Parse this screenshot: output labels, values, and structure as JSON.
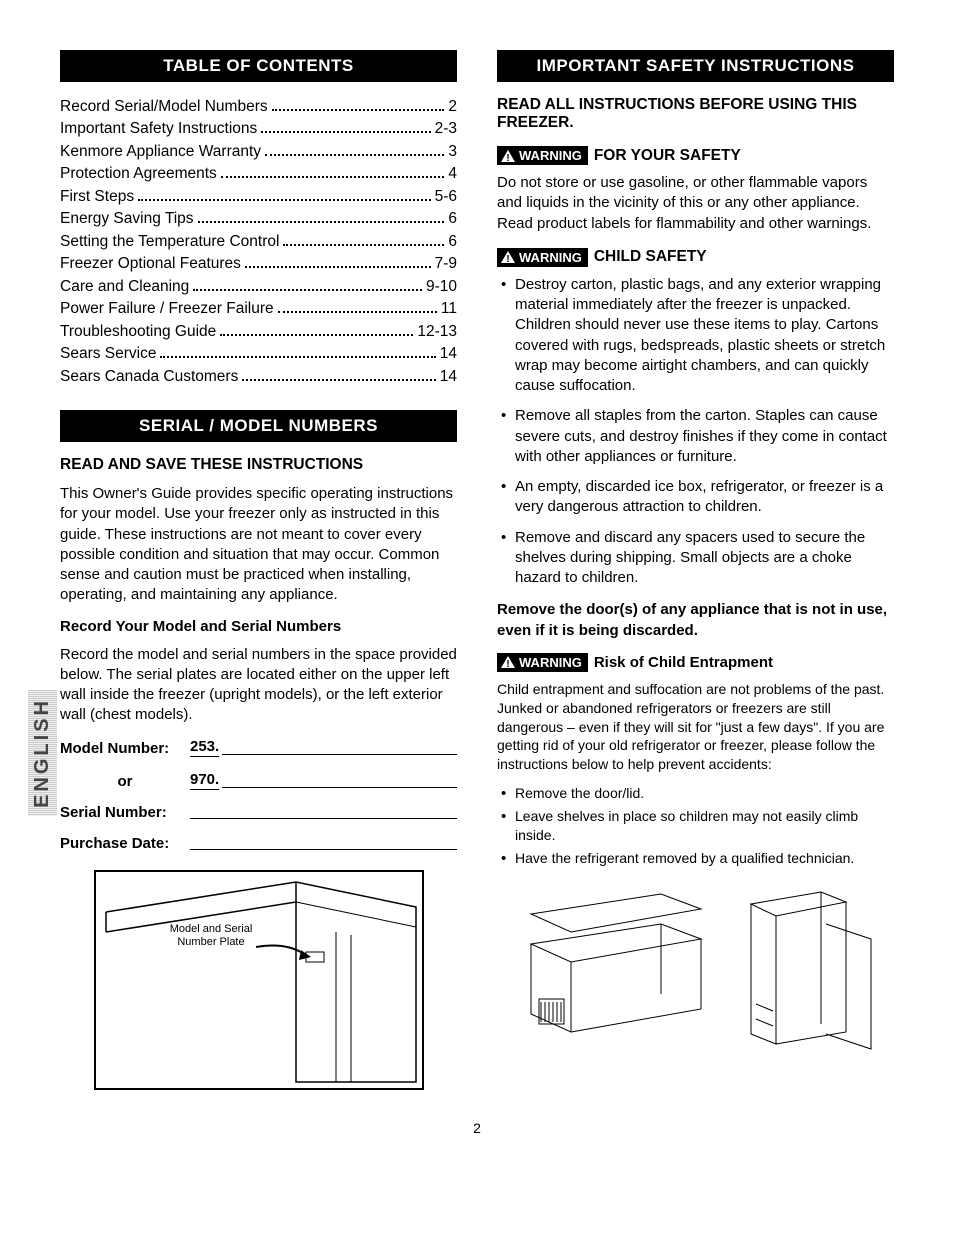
{
  "colors": {
    "header_bg": "#000000",
    "header_fg": "#ffffff",
    "text": "#000000",
    "page_bg": "#ffffff"
  },
  "typography": {
    "body_fontsize_pt": 11,
    "header_fontsize_pt": 13,
    "font_family": "Arial"
  },
  "page_number": "2",
  "english_tab": "ENGLISH",
  "left": {
    "toc_header": "TABLE OF CONTENTS",
    "toc": [
      {
        "label": "Record Serial/Model Numbers",
        "page": "2"
      },
      {
        "label": "Important Safety Instructions",
        "page": "2-3"
      },
      {
        "label": "Kenmore Appliance Warranty",
        "page": "3"
      },
      {
        "label": "Protection Agreements",
        "page": "4"
      },
      {
        "label": "First Steps",
        "page": "5-6"
      },
      {
        "label": "Energy Saving Tips",
        "page": "6"
      },
      {
        "label": "Setting the Temperature Control",
        "page": "6"
      },
      {
        "label": "Freezer Optional Features",
        "page": "7-9"
      },
      {
        "label": "Care and Cleaning",
        "page": "9-10"
      },
      {
        "label": "Power Failure / Freezer Failure",
        "page": "11"
      },
      {
        "label": "Troubleshooting Guide",
        "page": "12-13"
      },
      {
        "label": "Sears Service",
        "page": "14"
      },
      {
        "label": "Sears Canada Customers",
        "page": "14"
      }
    ],
    "serial_header": "SERIAL / MODEL NUMBERS",
    "read_save": "READ AND SAVE THESE INSTRUCTIONS",
    "owners_guide_para": "This Owner's Guide provides specific operating instructions for your model. Use your freezer only as instructed in this guide. These instructions are not meant to cover every possible condition and situation that may occur. Common sense and caution must be practiced when installing, operating, and maintaining any appliance.",
    "record_heading": "Record Your Model and Serial Numbers",
    "record_para": "Record the model and serial numbers in the space provided below. The serial plates are located either on the upper left wall inside the freezer (upright models), or the left exterior wall (chest models).",
    "fields": {
      "model_label": "Model Number:",
      "model_prefix": "253.",
      "or_label": "or",
      "or_prefix": "970.",
      "serial_label": "Serial Number:",
      "purchase_label": "Purchase Date:"
    },
    "diagram_label": "Model and Serial Number Plate"
  },
  "right": {
    "safety_header": "IMPORTANT SAFETY INSTRUCTIONS",
    "read_all": "READ ALL INSTRUCTIONS BEFORE USING THIS FREEZER.",
    "warning_word": "WARNING",
    "for_your_safety": "FOR YOUR SAFETY",
    "for_your_safety_para": "Do not store or use gasoline, or other flammable vapors and liquids in the vicinity of this or any other appliance. Read product labels for flammability and other warnings.",
    "child_safety": "CHILD SAFETY",
    "child_bullets": [
      "Destroy carton, plastic bags, and any exterior wrapping material immediately after the freezer is unpacked. Children should never use these items to play. Cartons covered with rugs, bedspreads, plastic sheets or stretch wrap may become airtight chambers, and can quickly cause suffocation.",
      "Remove all staples from the carton. Staples can cause severe cuts, and destroy finishes if they come in contact with other appliances or furniture.",
      "An empty, discarded ice box, refrigerator, or freezer is a very dangerous attraction to children.",
      "Remove and discard any spacers used to secure the shelves during shipping. Small objects are a choke hazard to children."
    ],
    "remove_doors": "Remove the door(s) of any appliance that is not in use, even if it is being discarded.",
    "risk_heading": "Risk of Child Entrapment",
    "risk_para": "Child entrapment and suffocation are not problems of the past. Junked or abandoned refrigerators or freezers are still dangerous – even if they will sit for \"just a few days\". If you are getting rid of your old refrigerator or freezer, please follow the instructions below to help prevent accidents:",
    "risk_bullets": [
      "Remove the door/lid.",
      "Leave shelves in place so children may not easily climb inside.",
      "Have the refrigerant removed by a qualified technician."
    ]
  }
}
